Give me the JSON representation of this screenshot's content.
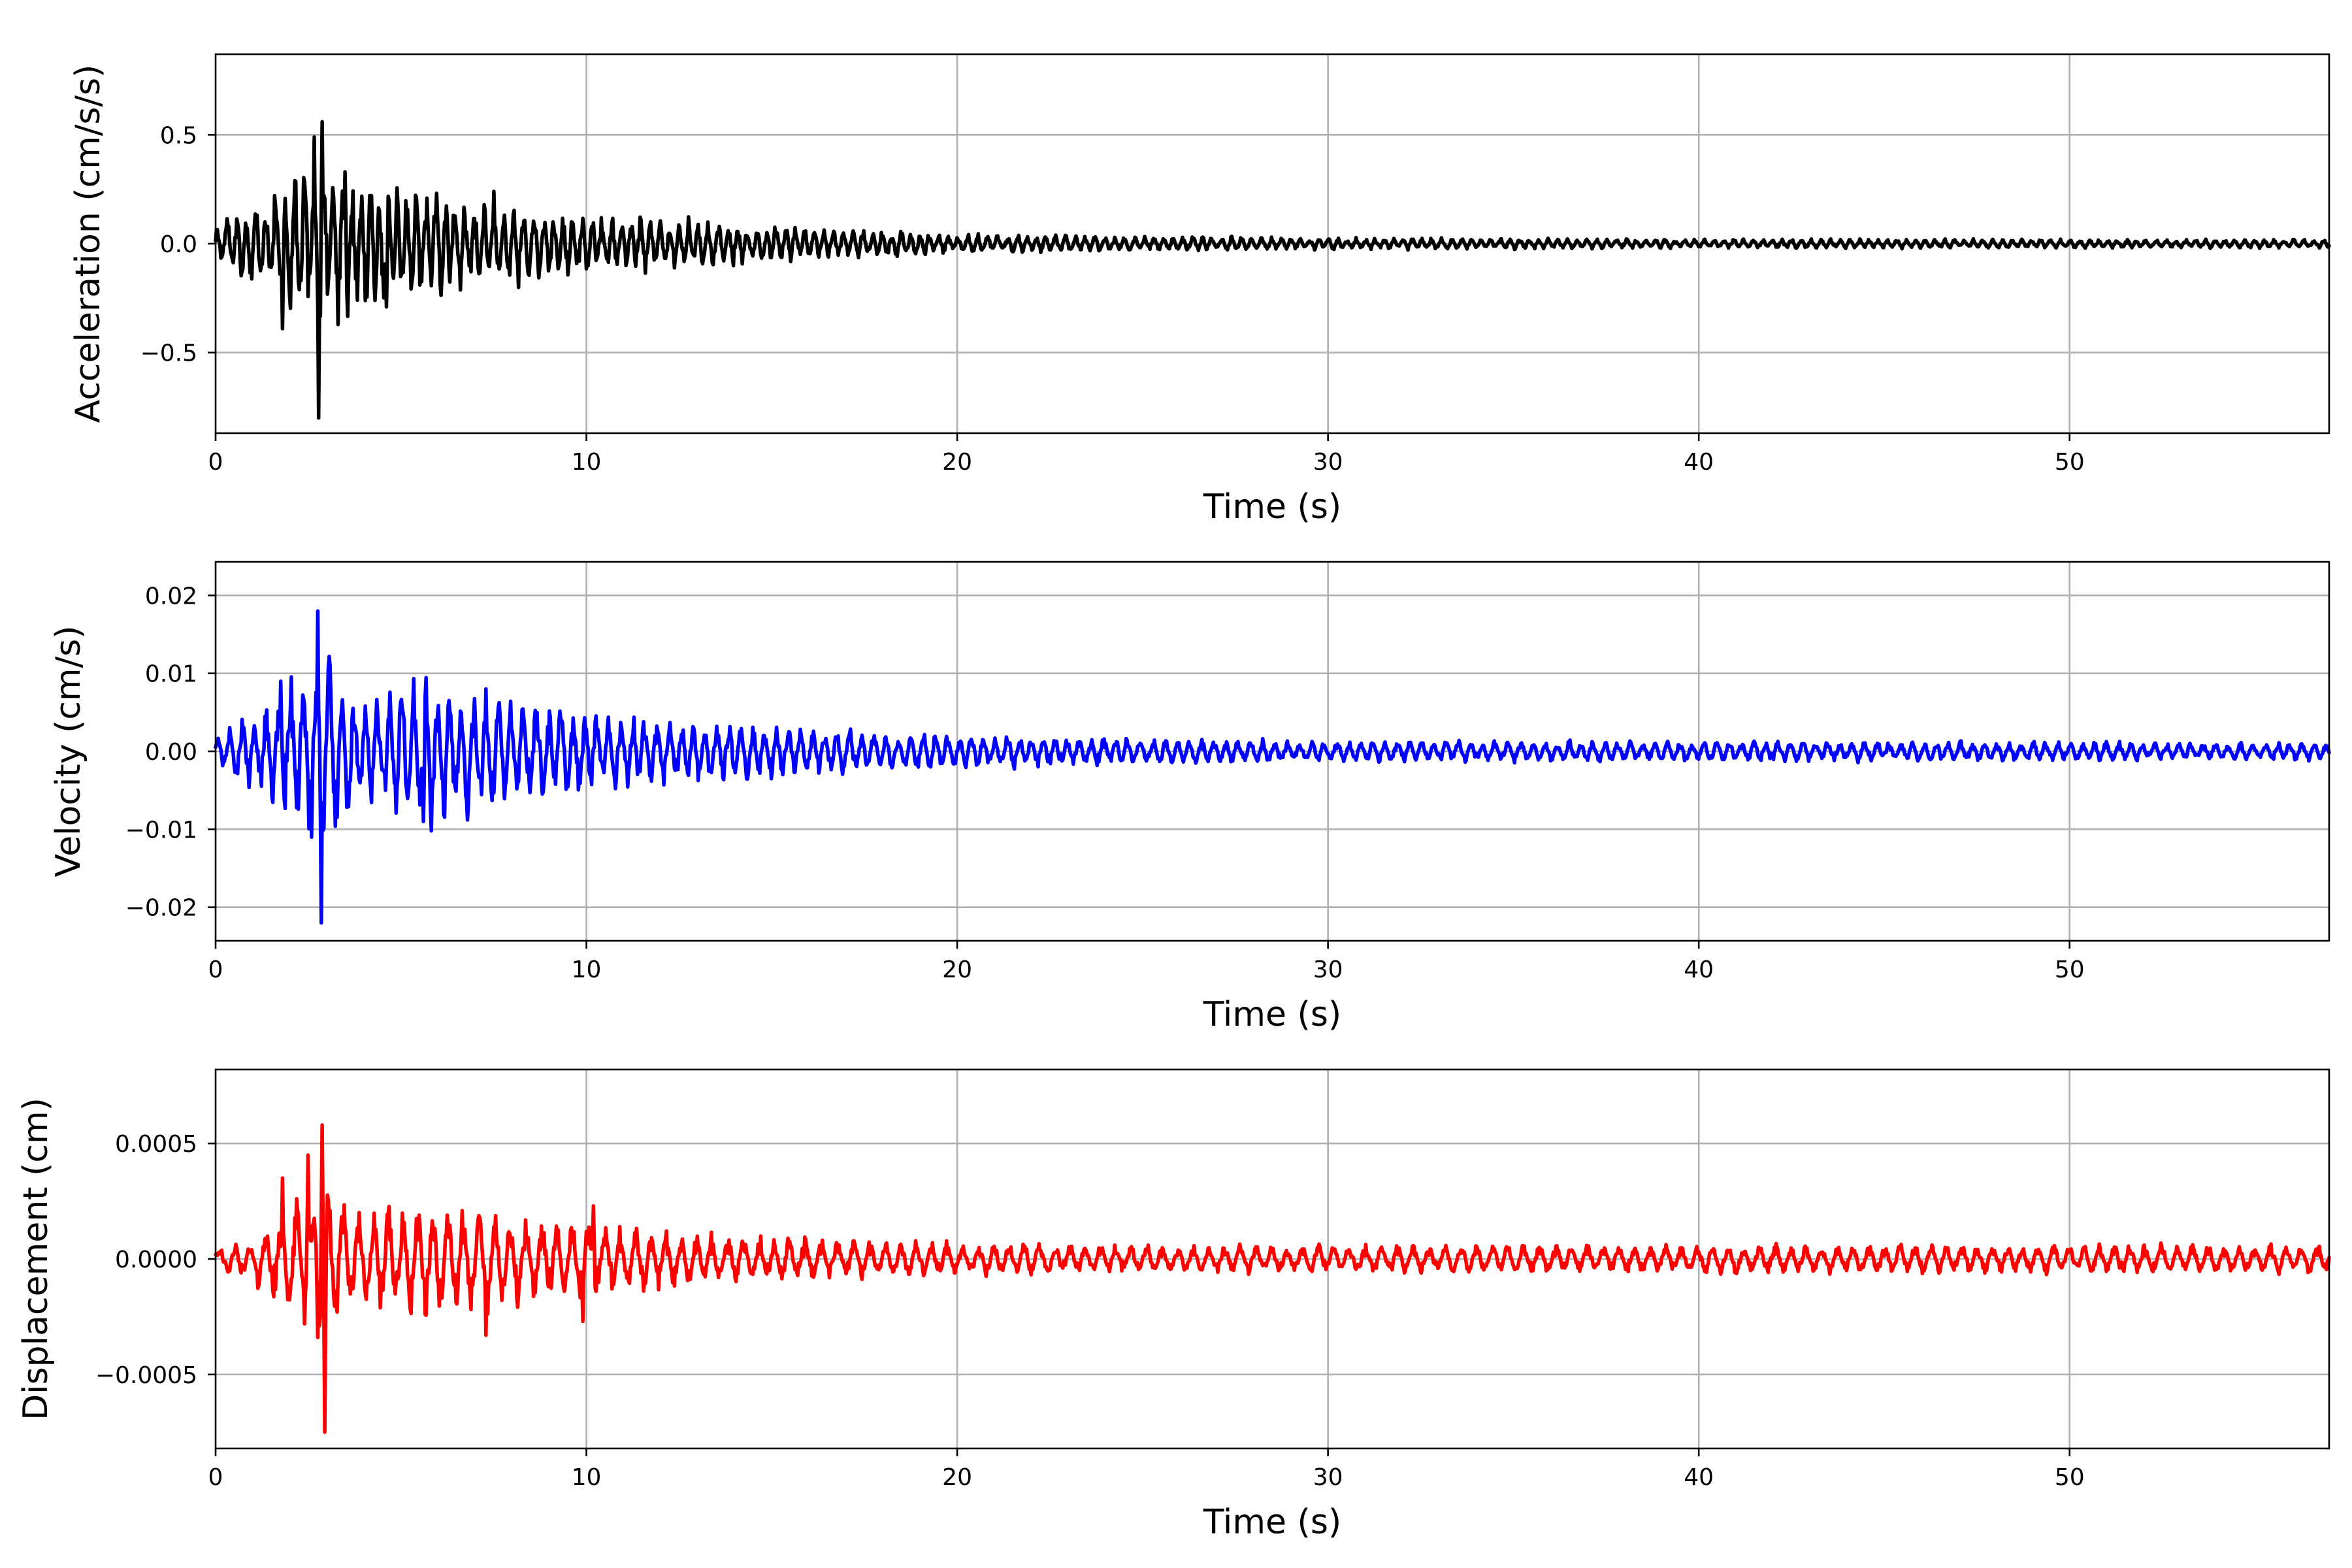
{
  "chart_data": [
    {
      "type": "line",
      "id": "acceleration",
      "xlabel": "Time (s)",
      "ylabel": "Acceleration (cm/s/s)",
      "xlim": [
        0,
        57
      ],
      "ylim": [
        -0.87,
        0.87
      ],
      "xticks": [
        0,
        10,
        20,
        30,
        40,
        50
      ],
      "xtick_labels": [
        "0",
        "10",
        "20",
        "30",
        "40",
        "50"
      ],
      "yticks": [
        0.5,
        0.0,
        -0.5
      ],
      "ytick_labels": [
        "0.5",
        "0.0",
        "−0.5"
      ],
      "grid": true,
      "color": "#000000",
      "signal": {
        "duration": 57,
        "dominant_period_s": 0.26,
        "envelope": [
          [
            0,
            0.07
          ],
          [
            1.5,
            0.19
          ],
          [
            2.8,
            0.36
          ],
          [
            4,
            0.24
          ],
          [
            6,
            0.19
          ],
          [
            8,
            0.15
          ],
          [
            10,
            0.11
          ],
          [
            13,
            0.085
          ],
          [
            16,
            0.06
          ],
          [
            20,
            0.04
          ],
          [
            24,
            0.03
          ],
          [
            30,
            0.022
          ],
          [
            40,
            0.018
          ],
          [
            57,
            0.016
          ]
        ],
        "spikes": [
          [
            1.8,
            -0.39
          ],
          [
            2.65,
            0.49
          ],
          [
            2.78,
            -0.8
          ],
          [
            2.88,
            0.56
          ],
          [
            3.5,
            0.33
          ],
          [
            4.6,
            -0.29
          ],
          [
            7.5,
            0.24
          ]
        ]
      }
    },
    {
      "type": "line",
      "id": "velocity",
      "xlabel": "Time (s)",
      "ylabel": "Velocity (cm/s)",
      "xlim": [
        0,
        57
      ],
      "ylim": [
        -0.0243,
        0.0243
      ],
      "xticks": [
        0,
        10,
        20,
        30,
        40,
        50
      ],
      "xtick_labels": [
        "0",
        "10",
        "20",
        "30",
        "40",
        "50"
      ],
      "yticks": [
        0.02,
        0.01,
        0.0,
        -0.01,
        -0.02
      ],
      "ytick_labels": [
        "0.02",
        "0.01",
        "0.00",
        "−0.01",
        "−0.02"
      ],
      "grid": true,
      "color": "#0000ff",
      "signal": {
        "duration": 57,
        "dominant_period_s": 0.33,
        "envelope": [
          [
            0,
            0.0015
          ],
          [
            1.5,
            0.0055
          ],
          [
            2.8,
            0.011
          ],
          [
            4,
            0.0065
          ],
          [
            6,
            0.0075
          ],
          [
            8,
            0.0055
          ],
          [
            10,
            0.0042
          ],
          [
            13,
            0.0032
          ],
          [
            16,
            0.0025
          ],
          [
            20,
            0.0018
          ],
          [
            24,
            0.0014
          ],
          [
            30,
            0.0011
          ],
          [
            40,
            0.0011
          ],
          [
            57,
            0.0009
          ]
        ],
        "spikes": [
          [
            1.75,
            0.009
          ],
          [
            2.6,
            -0.011
          ],
          [
            2.75,
            0.018
          ],
          [
            2.85,
            -0.022
          ],
          [
            5.6,
            0.009
          ],
          [
            5.6,
            -0.009
          ],
          [
            7.3,
            0.008
          ]
        ]
      }
    },
    {
      "type": "line",
      "id": "displacement",
      "xlabel": "Time (s)",
      "ylabel": "Displacement (cm)",
      "xlim": [
        0,
        57
      ],
      "ylim": [
        -0.00082,
        0.00082
      ],
      "xticks": [
        0,
        10,
        20,
        30,
        40,
        50
      ],
      "xtick_labels": [
        "0",
        "10",
        "20",
        "30",
        "40",
        "50"
      ],
      "yticks": [
        0.0005,
        0.0,
        -0.0005
      ],
      "ytick_labels": [
        "0.0005",
        "0.0000",
        "−0.0005"
      ],
      "grid": true,
      "color": "#ff0000",
      "signal": {
        "duration": 57,
        "dominant_period_s": 0.42,
        "envelope": [
          [
            0,
            4e-05
          ],
          [
            1.5,
            0.00012
          ],
          [
            2.8,
            0.00028
          ],
          [
            4,
            0.00018
          ],
          [
            6,
            0.00019
          ],
          [
            8,
            0.00017
          ],
          [
            10,
            0.00013
          ],
          [
            13,
            9e-05
          ],
          [
            16,
            7e-05
          ],
          [
            20,
            6e-05
          ],
          [
            24,
            5e-05
          ],
          [
            30,
            5e-05
          ],
          [
            40,
            5e-05
          ],
          [
            57,
            5e-05
          ]
        ],
        "spikes": [
          [
            1.8,
            0.00035
          ],
          [
            2.5,
            0.00045
          ],
          [
            2.75,
            -0.00034
          ],
          [
            2.88,
            0.00058
          ],
          [
            2.95,
            -0.00075
          ],
          [
            7.3,
            -0.00033
          ],
          [
            9.9,
            -0.00027
          ],
          [
            10.2,
            0.00023
          ]
        ]
      }
    }
  ]
}
